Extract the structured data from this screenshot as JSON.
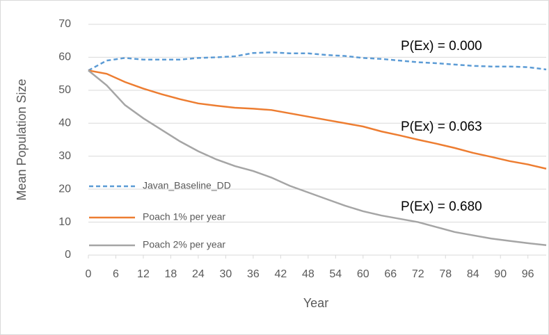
{
  "chart_data": {
    "type": "line",
    "x_label": "Year",
    "y_label": "Mean Population Size",
    "x": [
      0,
      4,
      8,
      12,
      16,
      20,
      24,
      28,
      32,
      36,
      40,
      44,
      48,
      52,
      56,
      60,
      64,
      68,
      72,
      76,
      80,
      84,
      88,
      92,
      96,
      100
    ],
    "series": [
      {
        "name": "Javan_Baseline_DD",
        "color": "#5b9bd5",
        "style": "dashed",
        "values": [
          56,
          59,
          59.8,
          59.3,
          59.3,
          59.3,
          59.8,
          60,
          60.3,
          61.3,
          61.5,
          61.2,
          61.2,
          60.7,
          60.4,
          59.8,
          59.5,
          59,
          58.5,
          58.2,
          57.8,
          57.4,
          57.2,
          57.2,
          57,
          56.3
        ]
      },
      {
        "name": "Poach 1% per year",
        "color": "#ed7d31",
        "style": "solid",
        "values": [
          56,
          55,
          52.5,
          50.5,
          48.8,
          47.3,
          46,
          45.3,
          44.7,
          44.4,
          44,
          43,
          42,
          41,
          40,
          39,
          37.5,
          36.3,
          35,
          33.8,
          32.5,
          31,
          29.8,
          28.5,
          27.5,
          26.2
        ]
      },
      {
        "name": "Poach 2% per year",
        "color": "#a5a5a5",
        "style": "solid",
        "values": [
          56,
          51.5,
          45.5,
          41.5,
          38,
          34.5,
          31.5,
          29,
          27,
          25.5,
          23.5,
          21,
          19,
          17,
          15,
          13.3,
          12,
          11,
          10,
          8.5,
          7,
          6,
          5,
          4.3,
          3.6,
          3
        ]
      }
    ],
    "annotations": [
      "P(Ex) = 0.000",
      "P(Ex) = 0.063",
      "P(Ex) = 0.680"
    ],
    "xlim": [
      0,
      100
    ],
    "xticks": [
      0,
      6,
      12,
      18,
      24,
      30,
      36,
      42,
      48,
      54,
      60,
      66,
      72,
      78,
      84,
      90,
      96
    ],
    "ylim": [
      0,
      70
    ],
    "yticks": [
      0,
      10,
      20,
      30,
      40,
      50,
      60,
      70
    ],
    "grid": true
  }
}
